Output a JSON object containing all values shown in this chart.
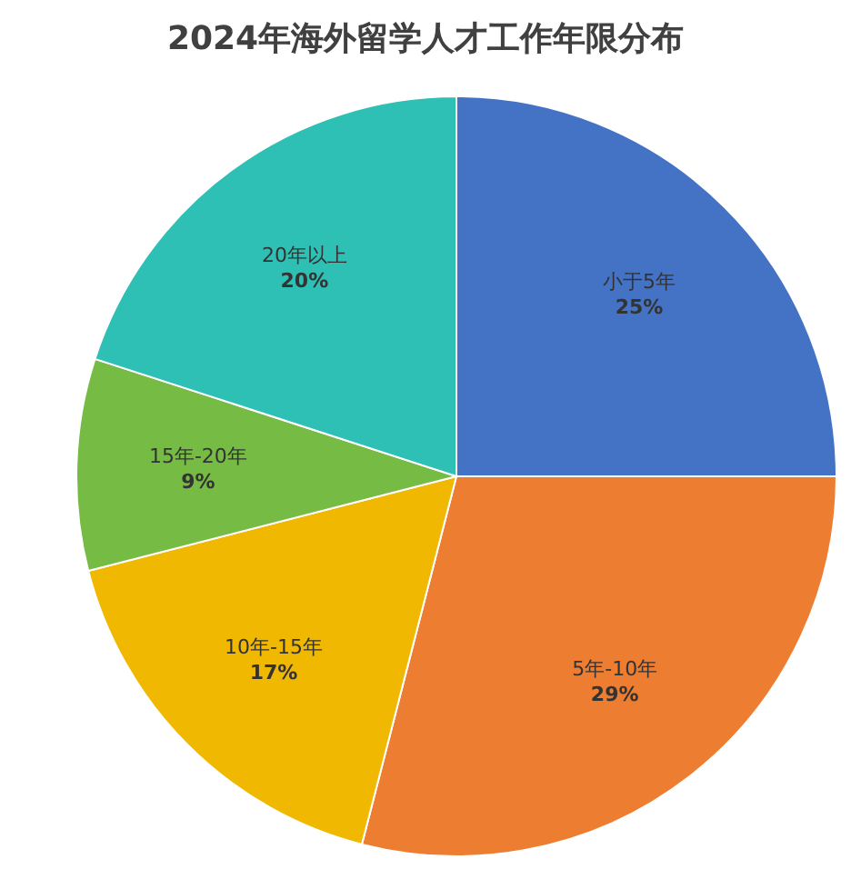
{
  "chart_data": {
    "type": "pie",
    "title": "2024年海外留学人才工作年限分布",
    "categories": [
      "小于5年",
      "5年-10年",
      "10年-15年",
      "15年-20年",
      "20年以上"
    ],
    "values": [
      25,
      29,
      17,
      9,
      20
    ],
    "value_labels": [
      "25%",
      "29%",
      "17%",
      "9%",
      "20%"
    ],
    "colors": [
      "#4472c4",
      "#ed7d31",
      "#f0b800",
      "#76bb44",
      "#2ec0b4"
    ]
  }
}
